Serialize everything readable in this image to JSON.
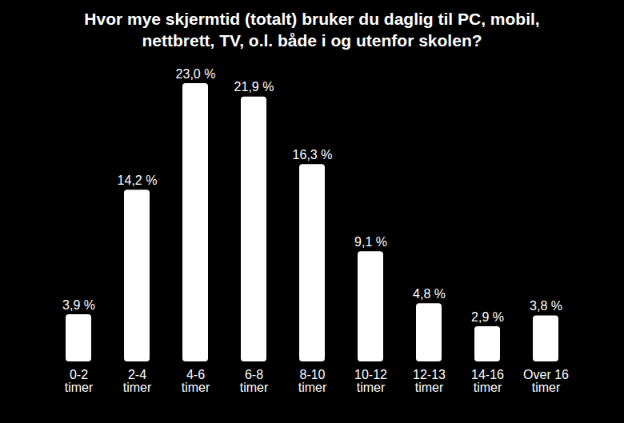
{
  "chart_data": {
    "type": "bar",
    "title": "Hvor mye skjermtid (totalt) bruker du daglig til PC, mobil, nettbrett, TV, o.l. både i og utenfor skolen?",
    "categories": [
      "0-2 timer",
      "2-4 timer",
      "4-6 timer",
      "6-8 timer",
      "8-10 timer",
      "10-12 timer",
      "12-13 timer",
      "14-16 timer",
      "Over 16 timer"
    ],
    "values": [
      3.9,
      14.2,
      23.0,
      21.9,
      16.3,
      9.1,
      4.8,
      2.9,
      3.8
    ],
    "value_labels": [
      "3,9 %",
      "14,2 %",
      "23,0 %",
      "21,9 %",
      "16,3 %",
      "9,1 %",
      "4,8 %",
      "2,9 %",
      "3,8 %"
    ],
    "color": "#ffffff",
    "data_labels": true,
    "tick_labels": "x",
    "grid": false
  }
}
